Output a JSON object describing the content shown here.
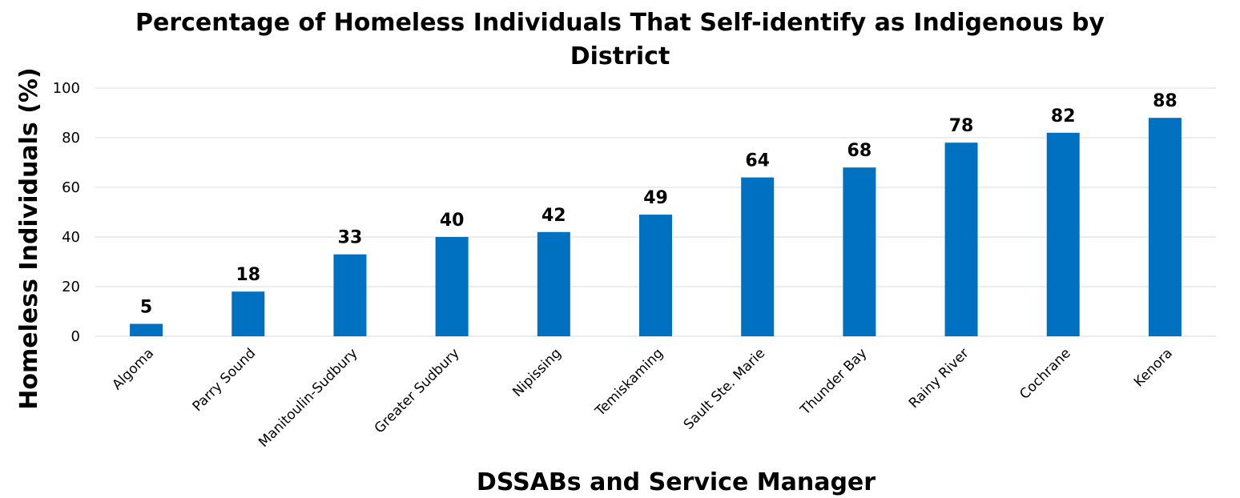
{
  "chart_data": {
    "type": "bar",
    "title": "Percentage of Homeless Individuals That Self-identify as Indigenous by",
    "subtitle": "District",
    "xlabel": "DSSABs and Service Manager",
    "ylabel": "Homeless Individuals (%)",
    "ylim": [
      0,
      100
    ],
    "yticks": [
      "0",
      "20",
      "40",
      "60",
      "80",
      "100"
    ],
    "grid": true,
    "legend": "none",
    "categories": [
      "Algoma",
      "Parry Sound",
      "Manitoulin-Sudbury",
      "Greater Sudbury",
      "Nipissing",
      "Temiskaming",
      "Sault Ste. Marie",
      "Thunder Bay",
      "Rainy River",
      "Cochrane",
      "Kenora"
    ],
    "values": [
      5,
      18,
      33,
      40,
      42,
      49,
      64,
      68,
      78,
      82,
      88
    ],
    "data_labels": [
      "5",
      "18",
      "33",
      "40",
      "42",
      "49",
      "64",
      "68",
      "78",
      "82",
      "88"
    ],
    "bar_color": "#0070C0"
  }
}
